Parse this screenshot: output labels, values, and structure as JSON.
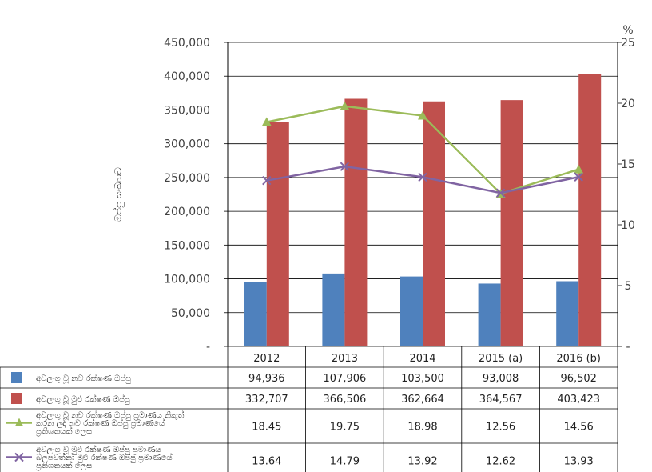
{
  "chart_data": {
    "type": "bar",
    "categories": [
      "2012",
      "2013",
      "2014",
      "2015 (a)",
      "2016 (b)"
    ],
    "ylabel": "ඔප්පු සංඛ්‍යාව",
    "y2label": "%",
    "ylim": [
      0,
      450000
    ],
    "y2lim": [
      0,
      25
    ],
    "yticks": [
      "-",
      "50,000",
      "100,000",
      "150,000",
      "200,000",
      "250,000",
      "300,000",
      "350,000",
      "400,000",
      "450,000"
    ],
    "y2ticks": [
      "-",
      "5",
      "10",
      "15",
      "20",
      "25"
    ],
    "grid": true,
    "legend_placement": "data table below chart",
    "series": [
      {
        "name": "අවලංගු වූ නව රක්ෂණ ඔප්පු",
        "kind": "bar",
        "axis": "left",
        "color": "#4F81BD",
        "values": [
          94936,
          107906,
          103500,
          93008,
          96502
        ],
        "labels": [
          "94,936",
          "107,906",
          "103,500",
          "93,008",
          "96,502"
        ]
      },
      {
        "name": "අවලංගු වූ මුළු රක්ෂණ ඔප්පු",
        "kind": "bar",
        "axis": "left",
        "color": "#C0504D",
        "values": [
          332707,
          366506,
          362664,
          364567,
          403423
        ],
        "labels": [
          "332,707",
          "366,506",
          "362,664",
          "364,567",
          "403,423"
        ]
      },
      {
        "name_lines": [
          "අවලංගු වූ නව රක්ෂණ ඔප්පු ප්‍රමාණය නිකුත්",
          "කරන ලද නව රක්ෂණ ඔප්පු ප්‍රමාණයේ",
          "ප්‍රතිශතයක් ලෙස"
        ],
        "kind": "line",
        "axis": "right",
        "marker": "triangle",
        "color": "#9BBB59",
        "values": [
          18.45,
          19.75,
          18.98,
          12.56,
          14.56
        ],
        "labels": [
          "18.45",
          "19.75",
          "18.98",
          "12.56",
          "14.56"
        ]
      },
      {
        "name_lines": [
          "අවලංගු වූ මුළු රක්ෂණ ඔප්පු ප්‍රමාණය",
          "බලපවත්නා මුළු රක්ෂණ ඔප්පු ප්‍රමාණයේ",
          "ප්‍රතිශතයක් ලෙස"
        ],
        "kind": "line",
        "axis": "right",
        "marker": "x",
        "color": "#8064A2",
        "values": [
          13.64,
          14.79,
          13.92,
          12.62,
          13.93
        ],
        "labels": [
          "13.64",
          "14.79",
          "13.92",
          "12.62",
          "13.93"
        ]
      }
    ]
  }
}
